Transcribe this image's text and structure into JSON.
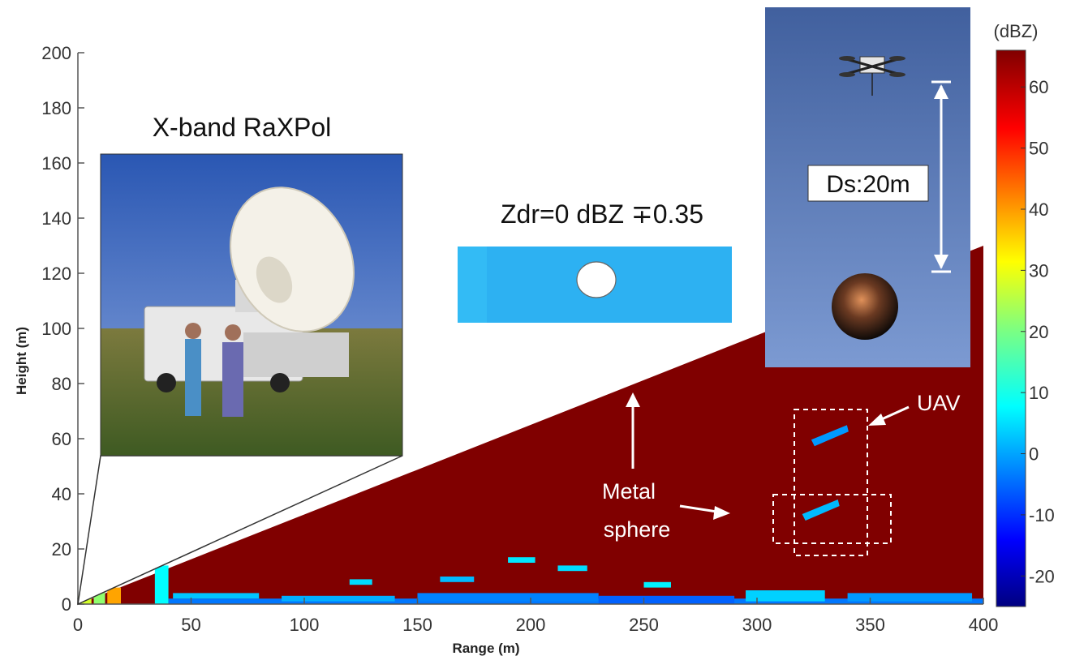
{
  "chart_data": {
    "type": "heatmap",
    "title": "",
    "xlabel": "Range (m)",
    "ylabel": "Height (m)",
    "xlim": [
      0,
      400
    ],
    "ylim": [
      0,
      200
    ],
    "x_ticks": [
      "0",
      "50",
      "100",
      "150",
      "200",
      "250",
      "300",
      "350",
      "400"
    ],
    "y_ticks": [
      "0",
      "20",
      "40",
      "60",
      "80",
      "100",
      "120",
      "140",
      "160",
      "180",
      "200"
    ],
    "colorbar": {
      "label": "(dBZ)",
      "range": [
        -25,
        66
      ],
      "ticks": [
        "-20",
        "-10",
        "0",
        "10",
        "20",
        "30",
        "40",
        "50",
        "60"
      ],
      "colormap": "jet"
    },
    "background_value_dbz": 66,
    "sector_top": {
      "range": 400,
      "height": 130
    },
    "targets": [
      {
        "label": "UAV",
        "range": 334,
        "height": 62,
        "dbz": 0
      },
      {
        "label": "Metal sphere",
        "range": 330,
        "height": 35,
        "dbz": 3
      }
    ],
    "clutter": [
      {
        "r0": 0,
        "r1": 6,
        "h0": 0,
        "h1": 3,
        "dbz": 28
      },
      {
        "r0": 7,
        "r1": 12,
        "h0": 0,
        "h1": 5,
        "dbz": 22
      },
      {
        "r0": 13,
        "r1": 19,
        "h0": 0,
        "h1": 6,
        "dbz": 40
      },
      {
        "r0": 34,
        "r1": 40,
        "h0": 0,
        "h1": 14,
        "dbz": 9
      },
      {
        "r0": 40,
        "r1": 400,
        "h0": 0,
        "h1": 2,
        "dbz": -3
      },
      {
        "r0": 42,
        "r1": 80,
        "h0": 2,
        "h1": 4,
        "dbz": 4
      },
      {
        "r0": 90,
        "r1": 140,
        "h0": 1,
        "h1": 3,
        "dbz": 2
      },
      {
        "r0": 150,
        "r1": 230,
        "h0": 1,
        "h1": 4,
        "dbz": -2
      },
      {
        "r0": 230,
        "r1": 290,
        "h0": 0,
        "h1": 3,
        "dbz": -5
      },
      {
        "r0": 295,
        "r1": 330,
        "h0": 1,
        "h1": 5,
        "dbz": 5
      },
      {
        "r0": 340,
        "r1": 395,
        "h0": 1,
        "h1": 4,
        "dbz": 0
      },
      {
        "r0": 120,
        "r1": 130,
        "h0": 7,
        "h1": 9,
        "dbz": 6
      },
      {
        "r0": 190,
        "r1": 202,
        "h0": 15,
        "h1": 17,
        "dbz": 7
      },
      {
        "r0": 212,
        "r1": 225,
        "h0": 12,
        "h1": 14,
        "dbz": 6
      },
      {
        "r0": 160,
        "r1": 175,
        "h0": 8,
        "h1": 10,
        "dbz": 3
      },
      {
        "r0": 250,
        "r1": 262,
        "h0": 6,
        "h1": 8,
        "dbz": 8
      }
    ]
  },
  "annotations": {
    "photo_title": "X-band RaXPol",
    "zdr_text": "Zdr=0 dBZ ∓0.35",
    "ds_label": "Ds:20m",
    "uav_label": "UAV",
    "sphere_label_1": "Metal",
    "sphere_label_2": "sphere"
  },
  "colors": {
    "background_dbz_color": "#7a0000",
    "zdr_box": "#33bbf5",
    "sky": "#4f7bc0"
  }
}
